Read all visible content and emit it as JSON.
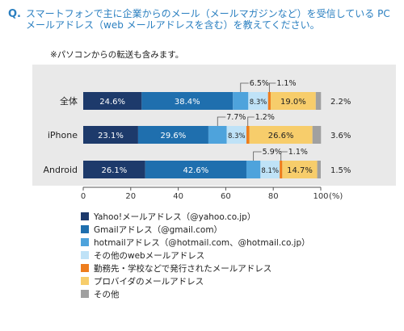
{
  "question": {
    "mark": "Q.",
    "text": "スマートフォンで主に企業からのメール（メールマガジンなど）を受信している PC メールアドレス（web メールアドレスを含む）を教えてください。",
    "note": "※パソコンからの転送も含みます。"
  },
  "chart_data": {
    "type": "bar",
    "orientation": "horizontal",
    "stacked": true,
    "categories": [
      "全体",
      "iPhone",
      "Android"
    ],
    "series": [
      {
        "name": "Yahoo!メールアドレス（@yahoo.co.jp）",
        "values": [
          24.6,
          23.1,
          26.1
        ],
        "color": "#1d3a6b"
      },
      {
        "name": "Gmailアドレス（@gmail.com）",
        "values": [
          38.4,
          29.6,
          42.6
        ],
        "color": "#1f6fae"
      },
      {
        "name": "hotmailアドレス（@hotmail.com、@hotmail.co.jp）",
        "values": [
          6.5,
          7.7,
          5.9
        ],
        "color": "#4ea3dc"
      },
      {
        "name": "その他のwebメールアドレス",
        "values": [
          8.3,
          8.3,
          8.1
        ],
        "color": "#bfe2f7"
      },
      {
        "name": "勤務先・学校などで発行されたメールアドレス",
        "values": [
          1.1,
          1.2,
          1.1
        ],
        "color": "#ee7d1d"
      },
      {
        "name": "プロバイダのメールアドレス",
        "values": [
          19.0,
          26.6,
          14.7
        ],
        "color": "#f7cd6b"
      },
      {
        "name": "その他",
        "values": [
          2.2,
          3.6,
          1.5
        ],
        "color": "#a0a0a0"
      }
    ],
    "xlim": [
      0,
      100
    ],
    "xticks": [
      "0",
      "20",
      "40",
      "60",
      "80",
      "100"
    ],
    "xunit": "(%)",
    "grid": false,
    "legend_position": "bottom"
  }
}
